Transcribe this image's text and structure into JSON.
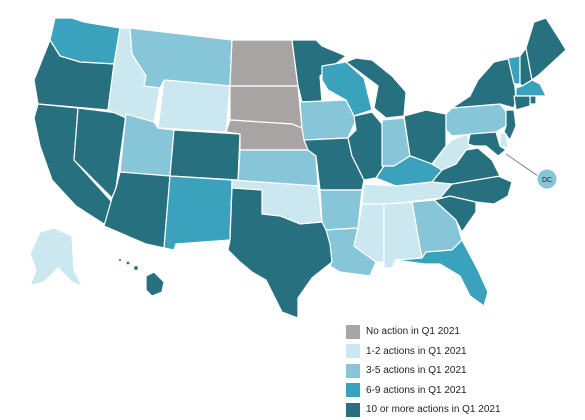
{
  "colors": {
    "none": "#a7a4a3",
    "c1_2": "#cbe7ef",
    "c3_5": "#86c6d8",
    "c6_9": "#3aa2bd",
    "c10": "#27707f",
    "border": "#ffffff"
  },
  "legend": [
    {
      "label": "No action in Q1 2021",
      "color": "#a7a4a3"
    },
    {
      "label": "1-2 actions in Q1 2021",
      "color": "#cbe7ef"
    },
    {
      "label": "3-5 actions in Q1 2021",
      "color": "#86c6d8"
    },
    {
      "label": "6-9 actions in Q1 2021",
      "color": "#3aa2bd"
    },
    {
      "label": "10 or more actions in Q1 2021",
      "color": "#27707f"
    }
  ],
  "states": [
    {
      "id": "WA",
      "category": "6-9 actions in Q1 2021"
    },
    {
      "id": "OR",
      "category": "10 or more actions in Q1 2021"
    },
    {
      "id": "CA",
      "category": "10 or more actions in Q1 2021"
    },
    {
      "id": "NV",
      "category": "10 or more actions in Q1 2021"
    },
    {
      "id": "ID",
      "category": "1-2 actions in Q1 2021"
    },
    {
      "id": "MT",
      "category": "3-5 actions in Q1 2021"
    },
    {
      "id": "WY",
      "category": "1-2 actions in Q1 2021"
    },
    {
      "id": "UT",
      "category": "3-5 actions in Q1 2021"
    },
    {
      "id": "AZ",
      "category": "10 or more actions in Q1 2021"
    },
    {
      "id": "CO",
      "category": "10 or more actions in Q1 2021"
    },
    {
      "id": "NM",
      "category": "6-9 actions in Q1 2021"
    },
    {
      "id": "ND",
      "category": "No action in Q1 2021"
    },
    {
      "id": "SD",
      "category": "No action in Q1 2021"
    },
    {
      "id": "NE",
      "category": "No action in Q1 2021"
    },
    {
      "id": "KS",
      "category": "3-5 actions in Q1 2021"
    },
    {
      "id": "OK",
      "category": "1-2 actions in Q1 2021"
    },
    {
      "id": "TX",
      "category": "10 or more actions in Q1 2021"
    },
    {
      "id": "MN",
      "category": "10 or more actions in Q1 2021"
    },
    {
      "id": "IA",
      "category": "3-5 actions in Q1 2021"
    },
    {
      "id": "MO",
      "category": "10 or more actions in Q1 2021"
    },
    {
      "id": "AR",
      "category": "3-5 actions in Q1 2021"
    },
    {
      "id": "LA",
      "category": "3-5 actions in Q1 2021"
    },
    {
      "id": "WI",
      "category": "6-9 actions in Q1 2021"
    },
    {
      "id": "IL",
      "category": "10 or more actions in Q1 2021"
    },
    {
      "id": "MI",
      "category": "10 or more actions in Q1 2021"
    },
    {
      "id": "IN",
      "category": "3-5 actions in Q1 2021"
    },
    {
      "id": "OH",
      "category": "10 or more actions in Q1 2021"
    },
    {
      "id": "KY",
      "category": "6-9 actions in Q1 2021"
    },
    {
      "id": "TN",
      "category": "1-2 actions in Q1 2021"
    },
    {
      "id": "MS",
      "category": "1-2 actions in Q1 2021"
    },
    {
      "id": "AL",
      "category": "1-2 actions in Q1 2021"
    },
    {
      "id": "GA",
      "category": "3-5 actions in Q1 2021"
    },
    {
      "id": "FL",
      "category": "6-9 actions in Q1 2021"
    },
    {
      "id": "SC",
      "category": "10 or more actions in Q1 2021"
    },
    {
      "id": "NC",
      "category": "10 or more actions in Q1 2021"
    },
    {
      "id": "VA",
      "category": "10 or more actions in Q1 2021"
    },
    {
      "id": "WV",
      "category": "1-2 actions in Q1 2021"
    },
    {
      "id": "PA",
      "category": "3-5 actions in Q1 2021"
    },
    {
      "id": "NY",
      "category": "10 or more actions in Q1 2021"
    },
    {
      "id": "VT",
      "category": "6-9 actions in Q1 2021"
    },
    {
      "id": "NH",
      "category": "10 or more actions in Q1 2021"
    },
    {
      "id": "ME",
      "category": "10 or more actions in Q1 2021"
    },
    {
      "id": "MA",
      "category": "6-9 actions in Q1 2021"
    },
    {
      "id": "RI",
      "category": "10 or more actions in Q1 2021"
    },
    {
      "id": "CT",
      "category": "10 or more actions in Q1 2021"
    },
    {
      "id": "NJ",
      "category": "10 or more actions in Q1 2021"
    },
    {
      "id": "DE",
      "category": "1-2 actions in Q1 2021"
    },
    {
      "id": "MD",
      "category": "10 or more actions in Q1 2021"
    },
    {
      "id": "AK",
      "category": "1-2 actions in Q1 2021"
    },
    {
      "id": "HI",
      "category": "10 or more actions in Q1 2021"
    },
    {
      "id": "DC",
      "category": "3-5 actions in Q1 2021"
    }
  ],
  "dc_label": "DC"
}
